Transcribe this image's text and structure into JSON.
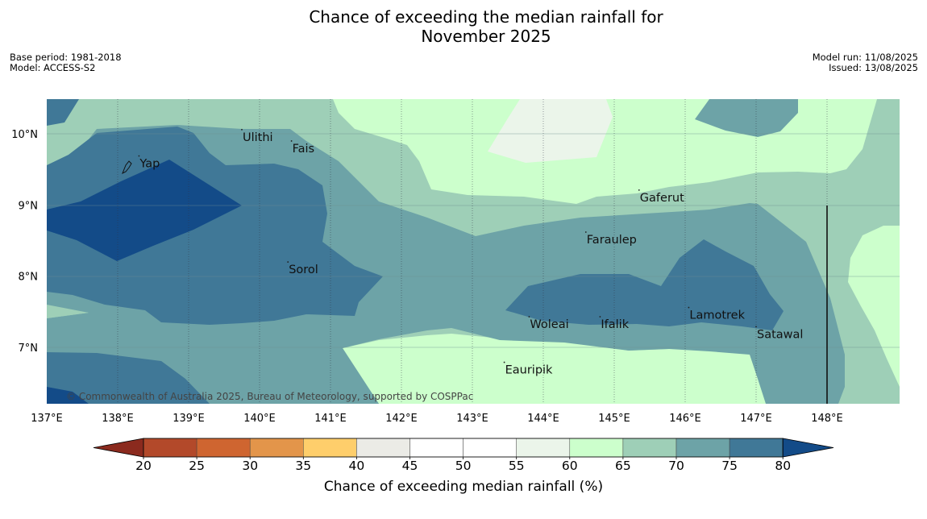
{
  "title_line1": "Chance of exceeding the median rainfall for",
  "title_line2": "November 2025",
  "meta_left": [
    "Base period: 1981-2018",
    "Model: ACCESS-S2"
  ],
  "meta_right": [
    "Model run: 11/08/2025",
    "Issued: 13/08/2025"
  ],
  "copyright": "© Commonwealth of Australia 2025, Bureau of Meteorology, supported by COSPPac",
  "lon_ticks": [
    "137°E",
    "138°E",
    "139°E",
    "140°E",
    "141°E",
    "142°E",
    "143°E",
    "144°E",
    "145°E",
    "146°E",
    "147°E",
    "148°E"
  ],
  "lat_ticks": [
    "10°N",
    "9°N",
    "8°N",
    "7°N"
  ],
  "places": [
    {
      "name": "Yap",
      "lon": 138.3,
      "lat": 9.53
    },
    {
      "name": "Ulithi",
      "lon": 139.75,
      "lat": 9.9
    },
    {
      "name": "Fais",
      "lon": 140.45,
      "lat": 9.74
    },
    {
      "name": "Gaferut",
      "lon": 145.35,
      "lat": 9.05
    },
    {
      "name": "Faraulep",
      "lon": 144.6,
      "lat": 8.46
    },
    {
      "name": "Sorol",
      "lon": 140.4,
      "lat": 8.04
    },
    {
      "name": "Woleai",
      "lon": 143.8,
      "lat": 7.27
    },
    {
      "name": "Ifalik",
      "lon": 144.8,
      "lat": 7.27
    },
    {
      "name": "Lamotrek",
      "lon": 146.05,
      "lat": 7.4
    },
    {
      "name": "Satawal",
      "lon": 147.0,
      "lat": 7.13
    },
    {
      "name": "Eauripik",
      "lon": 143.45,
      "lat": 6.63
    }
  ],
  "colorbar": {
    "ticks": [
      "20",
      "25",
      "30",
      "35",
      "40",
      "45",
      "50",
      "55",
      "60",
      "65",
      "70",
      "75",
      "80"
    ],
    "colors": [
      "#b3492a",
      "#cf6530",
      "#e3954a",
      "#fece6b",
      "#ebebe6",
      "#ffffff",
      "#ffffff",
      "#ebf5ea",
      "#ccffcc",
      "#9ecfb7",
      "#6da3a7",
      "#407897"
    ],
    "under_color": "#8b2a1e",
    "over_color": "#134b88",
    "label": "Chance of exceeding median rainfall (%)"
  }
}
